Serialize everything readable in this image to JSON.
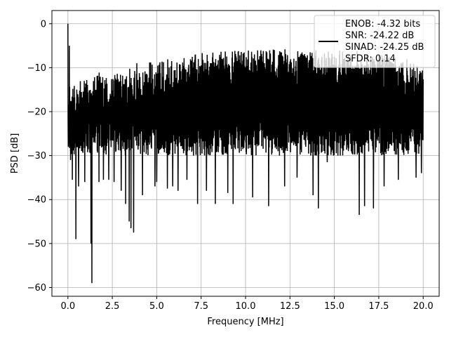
{
  "chart_data": {
    "type": "line",
    "title": "",
    "xlabel": "Frequency [MHz]",
    "ylabel": "PSD [dB]",
    "xlim": [
      -0.9,
      20.9
    ],
    "ylim": [
      -62,
      3
    ],
    "xticks": [
      0.0,
      2.5,
      5.0,
      7.5,
      10.0,
      12.5,
      15.0,
      17.5,
      20.0
    ],
    "xtick_labels": [
      "0.0",
      "2.5",
      "5.0",
      "7.5",
      "10.0",
      "12.5",
      "15.0",
      "17.5",
      "20.0"
    ],
    "yticks": [
      0,
      -10,
      -20,
      -30,
      -40,
      -50,
      -60
    ],
    "ytick_labels": [
      "0",
      "−10",
      "−20",
      "−30",
      "−40",
      "−50",
      "−60"
    ],
    "grid": true,
    "legend": {
      "placement": "top-right",
      "entries": [
        "ENOB: -4.32 bits",
        "SNR: -24.22 dB",
        "SINAD: -24.25 dB",
        "SFDR: 0.14"
      ]
    },
    "series": [
      {
        "color": "#000000",
        "x_range": [
          0.0,
          20.0
        ],
        "typical_band_db": [
          -28,
          -10
        ],
        "envelope_top_db": [
          -14,
          -12,
          -11,
          -10,
          -9,
          -8.5,
          -8,
          -7,
          -6.5,
          -6,
          -6,
          -5.5,
          -5.5,
          -6,
          -6,
          -6,
          -6,
          -7,
          -7,
          -8,
          -9
        ],
        "x": [
          0.0,
          0.02,
          0.08,
          0.15,
          0.25,
          0.45,
          0.52,
          0.6,
          0.95,
          1.3,
          1.35,
          1.6,
          1.75,
          2.0,
          2.3,
          2.6,
          3.0,
          3.25,
          3.45,
          3.55,
          3.7,
          4.2,
          4.9,
          5.0,
          5.6,
          5.9,
          6.2,
          6.7,
          7.3,
          7.8,
          8.3,
          9.0,
          9.3,
          9.8,
          10.4,
          11.3,
          12.2,
          12.9,
          13.8,
          14.1,
          14.6,
          15.2,
          15.4,
          16.4,
          16.7,
          17.2,
          17.8,
          18.6,
          19.6,
          19.9,
          19.95
        ],
        "y": [
          0,
          -28,
          -5,
          -31,
          -35.5,
          -49,
          -22,
          -37,
          -36,
          -50,
          -59,
          -15,
          -36,
          -35.5,
          -35.5,
          -36,
          -38,
          -41,
          -45,
          -46.5,
          -47.5,
          -39,
          -37,
          -36,
          -37.5,
          -37,
          -38,
          -35.5,
          -41,
          -38,
          -41,
          -38.5,
          -41,
          -28,
          -39.5,
          -41.5,
          -37,
          -35,
          -39,
          -42,
          -31.5,
          -30,
          -23,
          -43.5,
          -41.5,
          -42,
          -37,
          -35.5,
          -35,
          -34,
          -12
        ]
      }
    ]
  }
}
